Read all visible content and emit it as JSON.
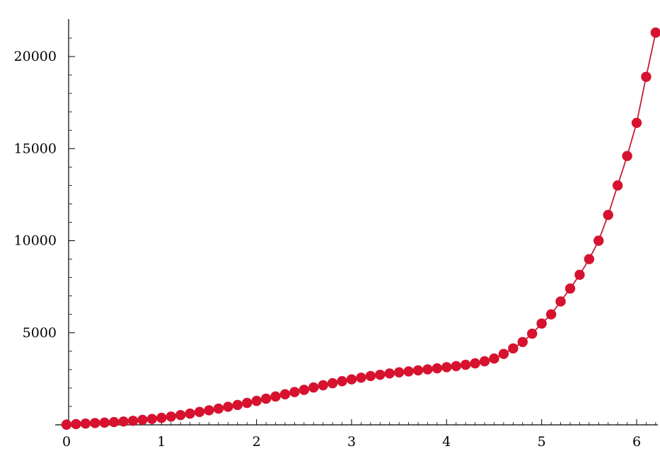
{
  "chart_data": {
    "type": "line",
    "title": "",
    "xlabel": "",
    "ylabel": "",
    "xlim": [
      0,
      6.2
    ],
    "ylim": [
      0,
      22000
    ],
    "xticks": [
      0,
      1,
      2,
      3,
      4,
      5,
      6
    ],
    "xtick_labels": [
      "0",
      "1",
      "2",
      "3",
      "4",
      "5",
      "6"
    ],
    "yticks": [
      5000,
      10000,
      15000,
      20000
    ],
    "ytick_labels": [
      "5000",
      "10000",
      "15000",
      "20000"
    ],
    "grid": false,
    "legend": "none",
    "colors": {
      "marker": "#d6122f",
      "line": "#c41e3a",
      "axis": "#000000"
    },
    "series": [
      {
        "markers": true,
        "x": [
          0,
          0.1,
          0.2,
          0.3,
          0.4,
          0.5,
          0.6,
          0.7,
          0.8,
          0.9,
          1.0,
          1.1,
          1.2,
          1.3,
          1.4,
          1.5,
          1.6,
          1.7,
          1.8,
          1.9,
          2.0,
          2.1,
          2.2,
          2.3,
          2.4,
          2.5,
          2.6,
          2.7,
          2.8,
          2.9,
          3.0,
          3.1,
          3.2,
          3.3,
          3.4,
          3.5,
          3.6,
          3.7,
          3.8,
          3.9,
          4.0,
          4.1,
          4.2,
          4.3,
          4.4,
          4.5,
          4.6,
          4.7,
          4.8,
          4.9,
          5.0,
          5.1,
          5.2,
          5.3,
          5.4,
          5.5,
          5.6,
          5.7,
          5.8,
          5.9,
          6.0,
          6.1,
          6.2
        ],
        "y": [
          10,
          40,
          70,
          100,
          120,
          150,
          180,
          220,
          270,
          320,
          380,
          450,
          530,
          610,
          700,
          790,
          880,
          980,
          1080,
          1190,
          1300,
          1420,
          1540,
          1660,
          1780,
          1900,
          2030,
          2150,
          2260,
          2370,
          2470,
          2560,
          2650,
          2720,
          2790,
          2850,
          2900,
          2960,
          3010,
          3070,
          3130,
          3190,
          3260,
          3340,
          3450,
          3600,
          3850,
          4150,
          4500,
          4950,
          5500,
          6000,
          6700,
          7400,
          8150,
          9000,
          10000,
          11400,
          13000,
          14600,
          16400,
          18900,
          21300
        ]
      }
    ]
  }
}
